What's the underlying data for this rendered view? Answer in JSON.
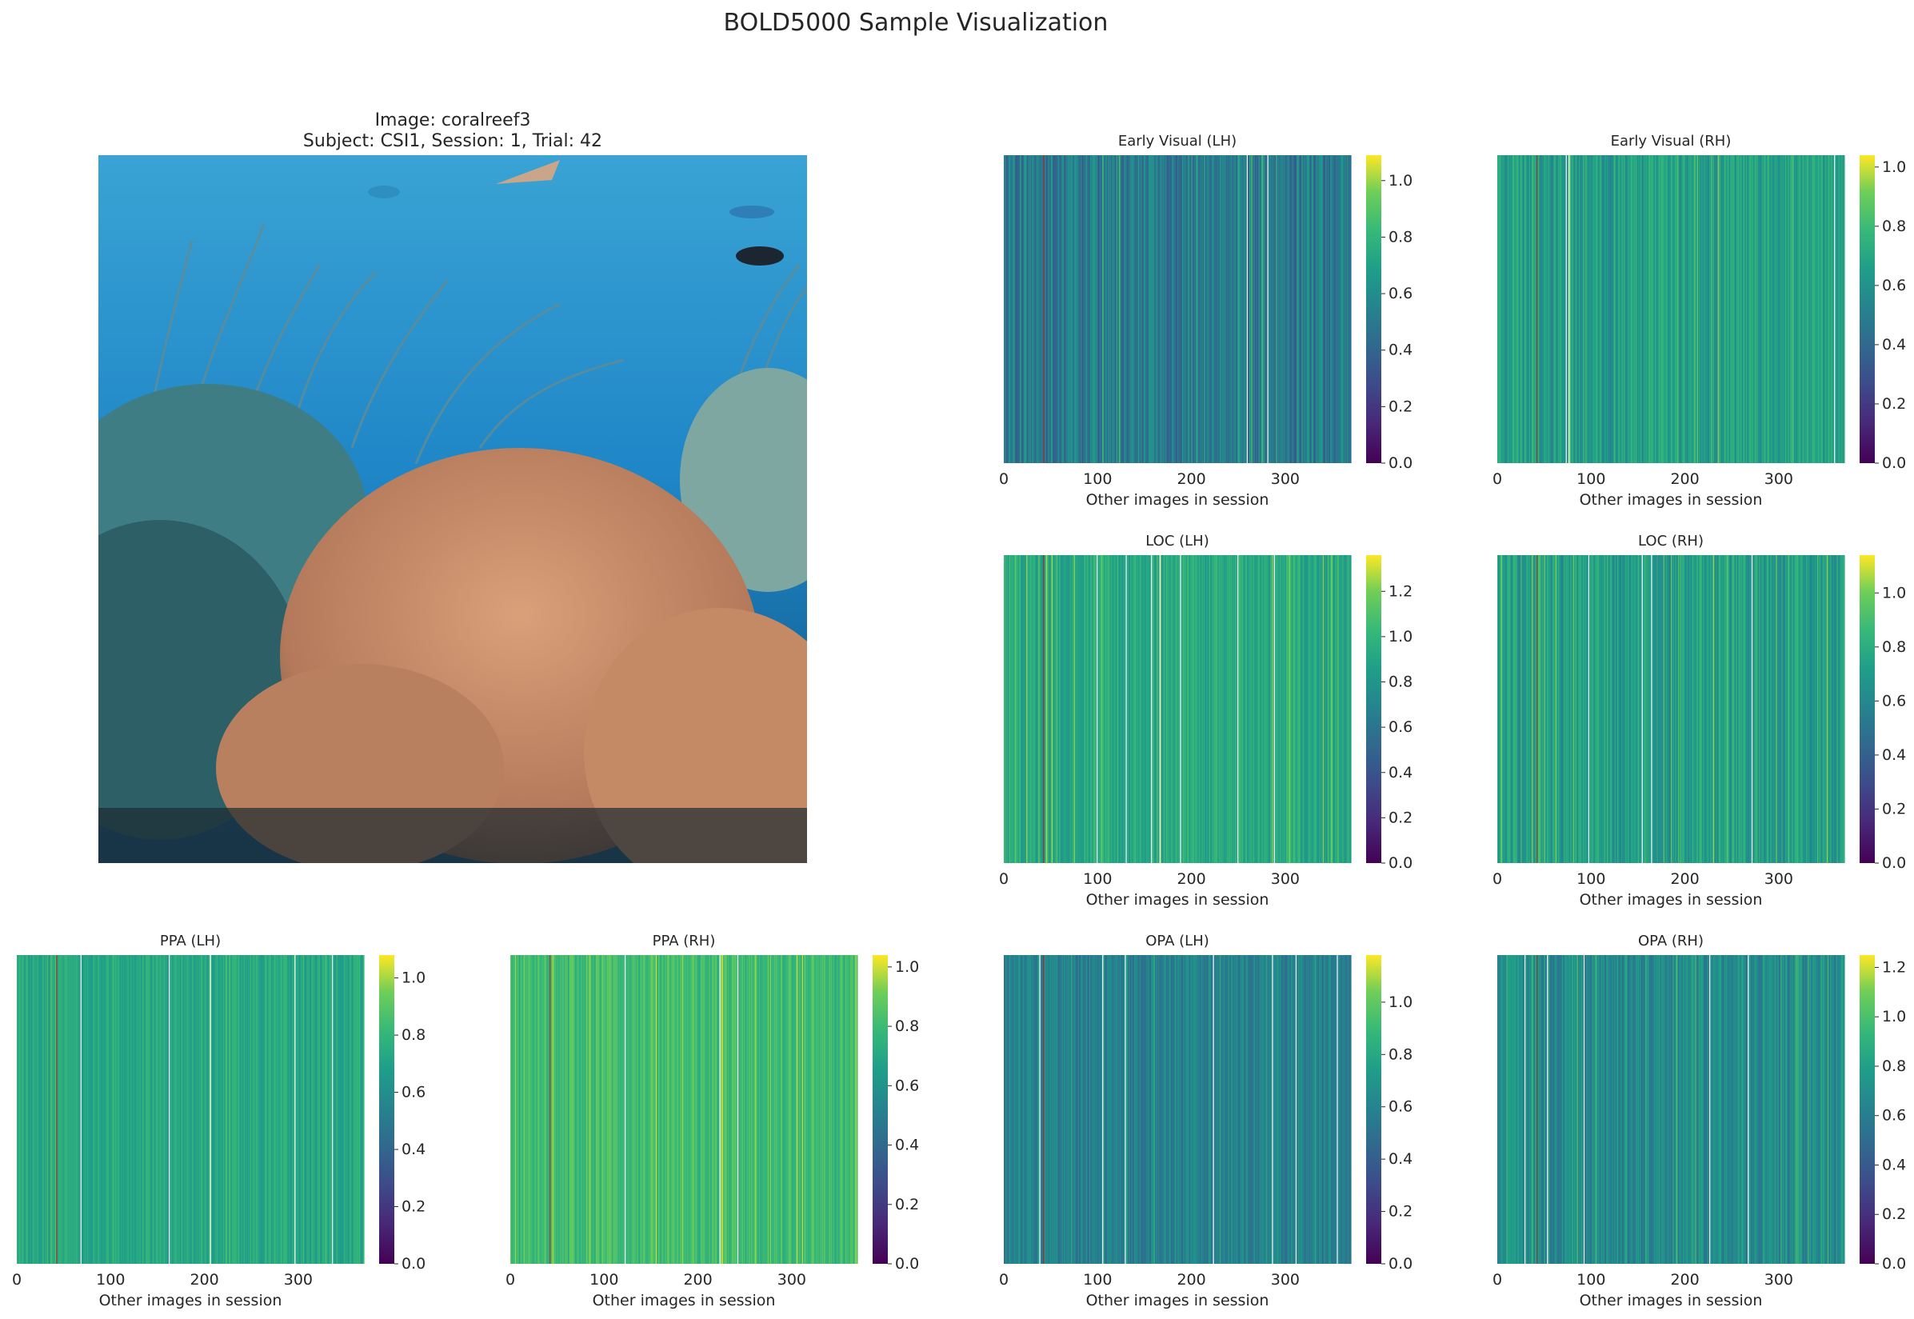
{
  "figure": {
    "title": "BOLD5000 Sample Visualization"
  },
  "stimulus": {
    "title_line1": "Image: coralreef3",
    "title_line2": "Subject: CSI1, Session: 1, Trial: 42"
  },
  "chart_data": [
    {
      "type": "heatmap",
      "title": "Early Visual (LH)",
      "xlabel": "Other images in session",
      "xlim": [
        0,
        370
      ],
      "xticks": [
        0,
        100,
        200,
        300
      ],
      "colorbar_ticks": [
        0.0,
        0.2,
        0.4,
        0.6,
        0.8,
        1.0
      ],
      "colorbar_max": 1.09,
      "colormap": "viridis",
      "typical_value": 0.5,
      "spread": 0.17,
      "highlight_index": 42
    },
    {
      "type": "heatmap",
      "title": "Early Visual (RH)",
      "xlabel": "Other images in session",
      "xlim": [
        0,
        370
      ],
      "xticks": [
        0,
        100,
        200,
        300
      ],
      "colorbar_ticks": [
        0.0,
        0.2,
        0.4,
        0.6,
        0.8,
        1.0
      ],
      "colorbar_max": 1.04,
      "colormap": "viridis",
      "typical_value": 0.66,
      "spread": 0.13,
      "highlight_index": 42
    },
    {
      "type": "heatmap",
      "title": "LOC (LH)",
      "xlabel": "Other images in session",
      "xlim": [
        0,
        370
      ],
      "xticks": [
        0,
        100,
        200,
        300
      ],
      "colorbar_ticks": [
        0.0,
        0.2,
        0.4,
        0.6,
        0.8,
        1.0,
        1.2
      ],
      "colorbar_max": 1.36,
      "colormap": "viridis",
      "typical_value": 0.92,
      "spread": 0.15,
      "highlight_index": 42
    },
    {
      "type": "heatmap",
      "title": "LOC (RH)",
      "xlabel": "Other images in session",
      "xlim": [
        0,
        370
      ],
      "xticks": [
        0,
        100,
        200,
        300
      ],
      "colorbar_ticks": [
        0.0,
        0.2,
        0.4,
        0.6,
        0.8,
        1.0
      ],
      "colorbar_max": 1.14,
      "colormap": "viridis",
      "typical_value": 0.72,
      "spread": 0.15,
      "highlight_index": 42
    },
    {
      "type": "heatmap",
      "title": "PPA (LH)",
      "xlabel": "Other images in session",
      "xlim": [
        0,
        370
      ],
      "xticks": [
        0,
        100,
        200,
        300
      ],
      "colorbar_ticks": [
        0.0,
        0.2,
        0.4,
        0.6,
        0.8,
        1.0
      ],
      "colorbar_max": 1.08,
      "colormap": "viridis",
      "typical_value": 0.73,
      "spread": 0.09,
      "highlight_index": 42
    },
    {
      "type": "heatmap",
      "title": "PPA (RH)",
      "xlabel": "Other images in session",
      "xlim": [
        0,
        370
      ],
      "xticks": [
        0,
        100,
        200,
        300
      ],
      "colorbar_ticks": [
        0.0,
        0.2,
        0.4,
        0.6,
        0.8,
        1.0
      ],
      "colorbar_max": 1.04,
      "colormap": "viridis",
      "typical_value": 0.8,
      "spread": 0.09,
      "highlight_index": 42
    },
    {
      "type": "heatmap",
      "title": "OPA (LH)",
      "xlabel": "Other images in session",
      "xlim": [
        0,
        370
      ],
      "xticks": [
        0,
        100,
        200,
        300
      ],
      "colorbar_ticks": [
        0.0,
        0.2,
        0.4,
        0.6,
        0.8,
        1.0
      ],
      "colorbar_max": 1.18,
      "colormap": "viridis",
      "typical_value": 0.58,
      "spread": 0.13,
      "highlight_index": 42
    },
    {
      "type": "heatmap",
      "title": "OPA (RH)",
      "xlabel": "Other images in session",
      "xlim": [
        0,
        370
      ],
      "xticks": [
        0,
        100,
        200,
        300
      ],
      "colorbar_ticks": [
        0.0,
        0.2,
        0.4,
        0.6,
        0.8,
        1.0,
        1.2
      ],
      "colorbar_max": 1.25,
      "colormap": "viridis",
      "typical_value": 0.68,
      "spread": 0.15,
      "highlight_index": 42
    }
  ]
}
